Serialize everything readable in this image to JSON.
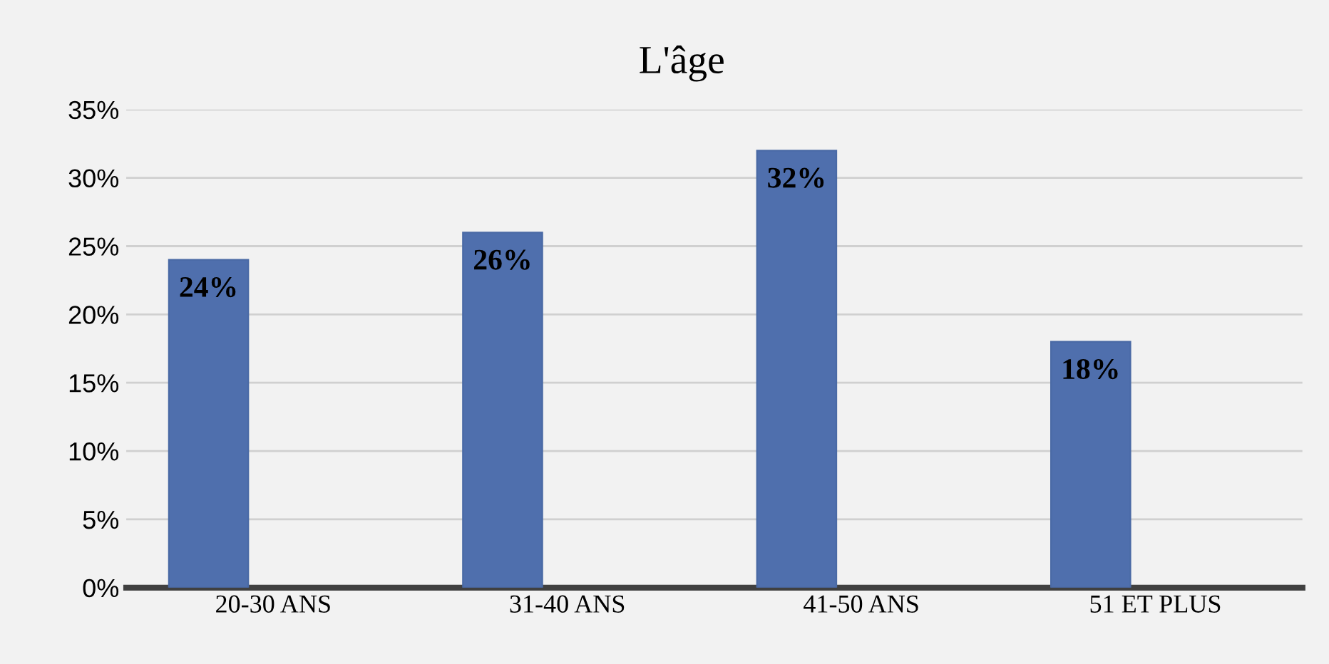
{
  "chart_data": {
    "type": "bar",
    "title": "L'âge",
    "categories": [
      "20-30 ANS",
      "31-40 ANS",
      "41-50 ANS",
      "51 ET PLUS"
    ],
    "values": [
      24,
      26,
      32,
      18
    ],
    "value_labels": [
      "24%",
      "26%",
      "32%",
      "18%"
    ],
    "color": "#4f6fad",
    "ylim": [
      0,
      35
    ],
    "yticks": [
      {
        "value": 0,
        "label": "0%"
      },
      {
        "value": 5,
        "label": "5%"
      },
      {
        "value": 10,
        "label": "10%"
      },
      {
        "value": 15,
        "label": "15%"
      },
      {
        "value": 20,
        "label": "20%"
      },
      {
        "value": 25,
        "label": "25%"
      },
      {
        "value": 30,
        "label": "30%"
      },
      {
        "value": 35,
        "label": "35%"
      }
    ],
    "grid": "y",
    "legend": false
  }
}
